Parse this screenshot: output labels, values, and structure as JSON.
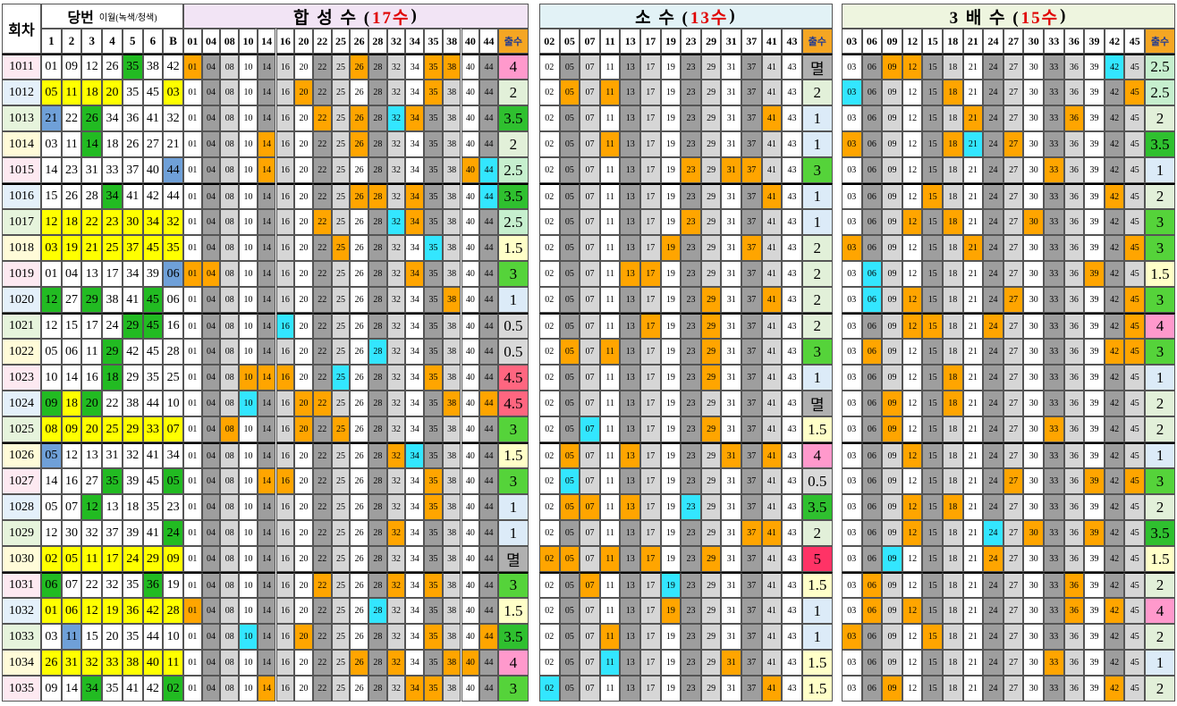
{
  "header": {
    "round_label": "회차",
    "draw_label": "당번",
    "carry_note": "이월(녹색/청색)",
    "positions": [
      "1",
      "2",
      "3",
      "4",
      "5",
      "6",
      "B"
    ],
    "count_label": "출수"
  },
  "sections": [
    {
      "title_prefix": "합 성 수 (",
      "title_count": "17수",
      "title_suffix": ")",
      "numbers": [
        "01",
        "04",
        "08",
        "10",
        "14",
        "16",
        "20",
        "22",
        "25",
        "26",
        "28",
        "32",
        "34",
        "35",
        "38",
        "40",
        "44"
      ]
    },
    {
      "title_prefix": "소 수 (",
      "title_count": "13수",
      "title_suffix": ")",
      "numbers": [
        "02",
        "05",
        "07",
        "11",
        "13",
        "17",
        "19",
        "23",
        "29",
        "31",
        "37",
        "41",
        "43"
      ]
    },
    {
      "title_prefix": "3 배 수 (",
      "title_count": "15수",
      "title_suffix": ")",
      "numbers": [
        "03",
        "06",
        "09",
        "12",
        "15",
        "18",
        "21",
        "24",
        "27",
        "30",
        "33",
        "36",
        "39",
        "42",
        "45"
      ]
    }
  ],
  "rows": [
    {
      "round": "1011",
      "numbers": [
        "01",
        "09",
        "12",
        "26",
        "35",
        "38",
        "42"
      ],
      "colors": [
        null,
        null,
        null,
        null,
        "#22bb22",
        null,
        null
      ],
      "counts": [
        "4",
        "멸",
        "2.5"
      ]
    },
    {
      "round": "1012",
      "numbers": [
        "05",
        "11",
        "18",
        "20",
        "35",
        "45",
        "03"
      ],
      "colors": [
        "#ffff00",
        "#ffff00",
        "#ffff00",
        "#ffff00",
        null,
        null,
        "#ffff00"
      ],
      "counts": [
        "2",
        "2",
        "2.5"
      ]
    },
    {
      "round": "1013",
      "numbers": [
        "21",
        "22",
        "26",
        "34",
        "36",
        "41",
        "32"
      ],
      "colors": [
        "#6fa0d8",
        null,
        "#22bb22",
        null,
        null,
        null,
        null
      ],
      "counts": [
        "3.5",
        "1",
        "2"
      ]
    },
    {
      "round": "1014",
      "numbers": [
        "03",
        "11",
        "14",
        "18",
        "26",
        "27",
        "21"
      ],
      "colors": [
        null,
        null,
        "#22bb22",
        null,
        null,
        null,
        null
      ],
      "counts": [
        "2",
        "1",
        "3.5"
      ]
    },
    {
      "round": "1015",
      "numbers": [
        "14",
        "23",
        "31",
        "33",
        "37",
        "40",
        "44"
      ],
      "colors": [
        null,
        null,
        null,
        null,
        null,
        null,
        "#6fa0d8"
      ],
      "counts": [
        "2.5",
        "3",
        "1"
      ]
    },
    {
      "round": "1016",
      "numbers": [
        "15",
        "26",
        "28",
        "34",
        "41",
        "42",
        "44"
      ],
      "colors": [
        null,
        null,
        null,
        "#22bb22",
        null,
        null,
        null
      ],
      "counts": [
        "3.5",
        "1",
        "2"
      ]
    },
    {
      "round": "1017",
      "numbers": [
        "12",
        "18",
        "22",
        "23",
        "30",
        "34",
        "32"
      ],
      "colors": [
        "#ffff00",
        "#ffff00",
        "#ffff00",
        "#ffff00",
        "#ffff00",
        "#ffff00",
        "#ffff00"
      ],
      "counts": [
        "2.5",
        "1",
        "3"
      ]
    },
    {
      "round": "1018",
      "numbers": [
        "03",
        "19",
        "21",
        "25",
        "37",
        "45",
        "35"
      ],
      "colors": [
        "#ffff00",
        "#ffff00",
        "#ffff00",
        "#ffff00",
        "#ffff00",
        "#ffff00",
        "#ffff00"
      ],
      "counts": [
        "1.5",
        "2",
        "3"
      ]
    },
    {
      "round": "1019",
      "numbers": [
        "01",
        "04",
        "13",
        "17",
        "34",
        "39",
        "06"
      ],
      "colors": [
        null,
        null,
        null,
        null,
        null,
        null,
        "#6fa0d8"
      ],
      "counts": [
        "3",
        "2",
        "1.5"
      ]
    },
    {
      "round": "1020",
      "numbers": [
        "12",
        "27",
        "29",
        "38",
        "41",
        "45",
        "06"
      ],
      "colors": [
        "#22bb22",
        null,
        "#22bb22",
        null,
        null,
        "#22bb22",
        null
      ],
      "counts": [
        "1",
        "2",
        "3"
      ]
    },
    {
      "round": "1021",
      "numbers": [
        "12",
        "15",
        "17",
        "24",
        "29",
        "45",
        "16"
      ],
      "colors": [
        null,
        null,
        null,
        null,
        "#22bb22",
        "#22bb22",
        null
      ],
      "counts": [
        "0.5",
        "2",
        "4"
      ]
    },
    {
      "round": "1022",
      "numbers": [
        "05",
        "06",
        "11",
        "29",
        "42",
        "45",
        "28"
      ],
      "colors": [
        null,
        null,
        null,
        "#22bb22",
        null,
        null,
        null
      ],
      "counts": [
        "0.5",
        "3",
        "3"
      ]
    },
    {
      "round": "1023",
      "numbers": [
        "10",
        "14",
        "16",
        "18",
        "29",
        "35",
        "25"
      ],
      "colors": [
        null,
        null,
        null,
        "#22bb22",
        null,
        null,
        null
      ],
      "counts": [
        "4.5",
        "1",
        "1"
      ]
    },
    {
      "round": "1024",
      "numbers": [
        "09",
        "18",
        "20",
        "22",
        "38",
        "44",
        "10"
      ],
      "colors": [
        "#22bb22",
        "#ffff00",
        "#22bb22",
        null,
        null,
        null,
        null
      ],
      "counts": [
        "4.5",
        "멸",
        "2"
      ]
    },
    {
      "round": "1025",
      "numbers": [
        "08",
        "09",
        "20",
        "25",
        "29",
        "33",
        "07"
      ],
      "colors": [
        "#ffff00",
        "#ffff00",
        "#ffff00",
        "#ffff00",
        "#ffff00",
        "#ffff00",
        "#ffff00"
      ],
      "counts": [
        "3",
        "1.5",
        "2"
      ]
    },
    {
      "round": "1026",
      "numbers": [
        "05",
        "12",
        "13",
        "31",
        "32",
        "41",
        "34"
      ],
      "colors": [
        "#6fa0d8",
        null,
        null,
        null,
        null,
        null,
        null
      ],
      "counts": [
        "1.5",
        "4",
        "1"
      ]
    },
    {
      "round": "1027",
      "numbers": [
        "14",
        "16",
        "27",
        "35",
        "39",
        "45",
        "05"
      ],
      "colors": [
        null,
        null,
        null,
        "#22bb22",
        null,
        null,
        "#22bb22"
      ],
      "counts": [
        "3",
        "0.5",
        "3"
      ]
    },
    {
      "round": "1028",
      "numbers": [
        "05",
        "07",
        "12",
        "13",
        "18",
        "35",
        "23"
      ],
      "colors": [
        null,
        null,
        "#22bb22",
        null,
        null,
        null,
        null
      ],
      "counts": [
        "1",
        "3.5",
        "2"
      ]
    },
    {
      "round": "1029",
      "numbers": [
        "12",
        "30",
        "32",
        "37",
        "39",
        "41",
        "24"
      ],
      "colors": [
        null,
        null,
        null,
        null,
        null,
        null,
        "#22bb22"
      ],
      "counts": [
        "1",
        "2",
        "3.5"
      ]
    },
    {
      "round": "1030",
      "numbers": [
        "02",
        "05",
        "11",
        "17",
        "24",
        "29",
        "09"
      ],
      "colors": [
        "#ffff00",
        "#ffff00",
        "#ffff00",
        "#ffff00",
        "#ffff00",
        "#ffff00",
        "#ffff00"
      ],
      "counts": [
        "멸",
        "5",
        "1.5"
      ]
    },
    {
      "round": "1031",
      "numbers": [
        "06",
        "07",
        "22",
        "32",
        "35",
        "36",
        "19"
      ],
      "colors": [
        "#22bb22",
        null,
        null,
        null,
        null,
        "#22bb22",
        null
      ],
      "counts": [
        "3",
        "1.5",
        "2"
      ]
    },
    {
      "round": "1032",
      "numbers": [
        "01",
        "06",
        "12",
        "19",
        "36",
        "42",
        "28"
      ],
      "colors": [
        "#ffff00",
        "#ffff00",
        "#ffff00",
        "#ffff00",
        "#ffff00",
        "#ffff00",
        "#ffff00"
      ],
      "counts": [
        "1.5",
        "1",
        "4"
      ]
    },
    {
      "round": "1033",
      "numbers": [
        "03",
        "11",
        "15",
        "20",
        "35",
        "44",
        "10"
      ],
      "colors": [
        null,
        "#6fa0d8",
        null,
        null,
        null,
        null,
        null
      ],
      "counts": [
        "3.5",
        "1",
        "2"
      ]
    },
    {
      "round": "1034",
      "numbers": [
        "26",
        "31",
        "32",
        "33",
        "38",
        "40",
        "11"
      ],
      "colors": [
        "#ffff00",
        "#ffff00",
        "#ffff00",
        "#ffff00",
        "#ffff00",
        "#ffff00",
        "#ffff00"
      ],
      "counts": [
        "4",
        "1.5",
        "1"
      ]
    },
    {
      "round": "1035",
      "numbers": [
        "09",
        "14",
        "34",
        "35",
        "41",
        "42",
        "02"
      ],
      "colors": [
        null,
        null,
        "#22bb22",
        null,
        null,
        null,
        "#22bb22"
      ],
      "counts": [
        "3",
        "1.5",
        "2"
      ]
    }
  ]
}
